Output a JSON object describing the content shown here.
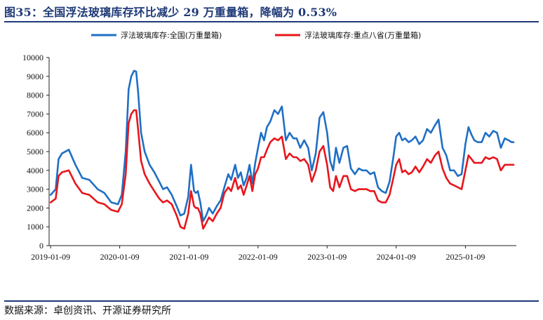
{
  "header": {
    "title": "图35：全国浮法玻璃库存环比减少 29 万重量箱，降幅为 0.53%"
  },
  "footer": {
    "source": "数据来源：卓创资讯、开源证券研究所"
  },
  "chart_data": {
    "type": "line",
    "title": "图35：全国浮法玻璃库存环比减少 29 万重量箱，降幅为 0.53%",
    "xlabel": "",
    "ylabel": "",
    "ylim": [
      0,
      10000
    ],
    "y_ticks": [
      0,
      1000,
      2000,
      3000,
      4000,
      5000,
      6000,
      7000,
      8000,
      9000,
      10000
    ],
    "x_ticks": [
      "2019-01-09",
      "2020-01-09",
      "2021-01-09",
      "2022-01-09",
      "2023-01-09",
      "2024-01-09",
      "2025-01-09"
    ],
    "legend_position": "top",
    "grid": false,
    "series": [
      {
        "name": "浮法玻璃库存:全国(万重量箱)",
        "color": "#1f6fc5",
        "x": [
          "2019-01-09",
          "2019-02-05",
          "2019-02-20",
          "2019-03-10",
          "2019-04-15",
          "2019-05-20",
          "2019-06-25",
          "2019-08-01",
          "2019-09-15",
          "2019-10-20",
          "2019-11-25",
          "2019-12-31",
          "2020-01-20",
          "2020-02-10",
          "2020-02-25",
          "2020-03-10",
          "2020-03-25",
          "2020-04-05",
          "2020-04-15",
          "2020-05-01",
          "2020-05-20",
          "2020-06-15",
          "2020-07-10",
          "2020-08-05",
          "2020-08-25",
          "2020-09-15",
          "2020-10-10",
          "2020-11-05",
          "2020-11-25",
          "2020-12-15",
          "2021-01-05",
          "2021-01-20",
          "2021-02-05",
          "2021-02-15",
          "2021-02-25",
          "2021-03-10",
          "2021-03-25",
          "2021-04-10",
          "2021-04-25",
          "2021-05-15",
          "2021-06-05",
          "2021-06-25",
          "2021-07-15",
          "2021-08-05",
          "2021-08-20",
          "2021-09-10",
          "2021-09-25",
          "2021-10-10",
          "2021-10-25",
          "2021-11-10",
          "2021-11-25",
          "2021-12-10",
          "2021-12-25",
          "2022-01-09",
          "2022-01-25",
          "2022-02-10",
          "2022-02-25",
          "2022-03-15",
          "2022-04-05",
          "2022-04-25",
          "2022-05-15",
          "2022-06-05",
          "2022-06-25",
          "2022-07-15",
          "2022-08-01",
          "2022-08-20",
          "2022-09-10",
          "2022-10-01",
          "2022-10-20",
          "2022-11-10",
          "2022-11-30",
          "2022-12-20",
          "2023-01-09",
          "2023-01-25",
          "2023-02-10",
          "2023-02-25",
          "2023-03-15",
          "2023-04-05",
          "2023-04-25",
          "2023-05-15",
          "2023-06-05",
          "2023-06-25",
          "2023-07-15",
          "2023-08-05",
          "2023-08-25",
          "2023-09-15",
          "2023-10-05",
          "2023-10-25",
          "2023-11-15",
          "2023-12-05",
          "2023-12-25",
          "2024-01-09",
          "2024-01-25",
          "2024-02-10",
          "2024-02-25",
          "2024-03-15",
          "2024-04-01",
          "2024-04-20",
          "2024-05-10",
          "2024-05-30",
          "2024-06-20",
          "2024-07-10",
          "2024-08-01",
          "2024-08-20",
          "2024-09-10",
          "2024-09-30",
          "2024-10-20",
          "2024-11-10",
          "2024-11-30",
          "2024-12-20",
          "2025-01-09",
          "2025-01-25",
          "2025-02-10",
          "2025-02-25",
          "2025-03-15",
          "2025-04-05",
          "2025-04-25",
          "2025-05-15",
          "2025-06-05",
          "2025-06-25",
          "2025-07-15",
          "2025-08-05",
          "2025-08-25",
          "2025-09-10",
          "2025-09-20"
        ],
        "values": [
          2700,
          3000,
          4600,
          4900,
          5100,
          4300,
          3600,
          3500,
          3000,
          2800,
          2300,
          2200,
          2700,
          5000,
          8300,
          9000,
          9300,
          9250,
          8200,
          6000,
          5000,
          4300,
          3900,
          3400,
          3000,
          3100,
          2700,
          2100,
          1600,
          1700,
          2600,
          4300,
          2900,
          2800,
          2900,
          2300,
          1300,
          1600,
          2000,
          1700,
          2100,
          2400,
          3100,
          3800,
          3500,
          4300,
          3600,
          3900,
          3200,
          3600,
          4300,
          3300,
          4400,
          5200,
          6000,
          5600,
          6300,
          6600,
          7200,
          7000,
          7400,
          5600,
          6000,
          5700,
          5700,
          5200,
          5600,
          5200,
          4000,
          4900,
          6800,
          7100,
          6000,
          4500,
          4000,
          5200,
          4400,
          5200,
          5300,
          4100,
          3800,
          4100,
          4000,
          4000,
          3800,
          3900,
          3100,
          2900,
          2800,
          3400,
          4700,
          5800,
          6000,
          5600,
          5700,
          5500,
          5600,
          5800,
          5400,
          5600,
          6200,
          6000,
          6400,
          6700,
          5200,
          4800,
          4000,
          4000,
          3700,
          3800,
          5400,
          6300,
          5900,
          5600,
          5500,
          5500,
          6000,
          5800,
          6100,
          6000,
          5200,
          5700,
          5600,
          5500,
          5500
        ]
      },
      {
        "name": "浮法玻璃库存:重点八省(万重量箱)",
        "color": "#e8151b",
        "x": [
          "2019-01-09",
          "2019-02-05",
          "2019-02-20",
          "2019-03-10",
          "2019-04-15",
          "2019-05-20",
          "2019-06-25",
          "2019-08-01",
          "2019-09-15",
          "2019-10-20",
          "2019-11-25",
          "2019-12-31",
          "2020-01-20",
          "2020-02-10",
          "2020-02-25",
          "2020-03-10",
          "2020-03-25",
          "2020-04-05",
          "2020-04-15",
          "2020-05-01",
          "2020-05-20",
          "2020-06-15",
          "2020-07-10",
          "2020-08-05",
          "2020-08-25",
          "2020-09-15",
          "2020-10-10",
          "2020-11-05",
          "2020-11-25",
          "2020-12-15",
          "2021-01-05",
          "2021-01-20",
          "2021-02-05",
          "2021-02-15",
          "2021-02-25",
          "2021-03-10",
          "2021-03-25",
          "2021-04-10",
          "2021-04-25",
          "2021-05-15",
          "2021-06-05",
          "2021-06-25",
          "2021-07-15",
          "2021-08-05",
          "2021-08-20",
          "2021-09-10",
          "2021-09-25",
          "2021-10-10",
          "2021-10-25",
          "2021-11-10",
          "2021-11-25",
          "2021-12-10",
          "2021-12-25",
          "2022-01-09",
          "2022-01-25",
          "2022-02-10",
          "2022-02-25",
          "2022-03-15",
          "2022-04-05",
          "2022-04-25",
          "2022-05-15",
          "2022-06-05",
          "2022-06-25",
          "2022-07-15",
          "2022-08-01",
          "2022-08-20",
          "2022-09-10",
          "2022-10-01",
          "2022-10-20",
          "2022-11-10",
          "2022-11-30",
          "2022-12-20",
          "2023-01-09",
          "2023-01-25",
          "2023-02-10",
          "2023-02-25",
          "2023-03-15",
          "2023-04-05",
          "2023-04-25",
          "2023-05-15",
          "2023-06-05",
          "2023-06-25",
          "2023-07-15",
          "2023-08-05",
          "2023-08-25",
          "2023-09-15",
          "2023-10-05",
          "2023-10-25",
          "2023-11-15",
          "2023-12-05",
          "2023-12-25",
          "2024-01-09",
          "2024-01-25",
          "2024-02-10",
          "2024-02-25",
          "2024-03-15",
          "2024-04-01",
          "2024-04-20",
          "2024-05-10",
          "2024-05-30",
          "2024-06-20",
          "2024-07-10",
          "2024-08-01",
          "2024-08-20",
          "2024-09-10",
          "2024-09-30",
          "2024-10-20",
          "2024-11-10",
          "2024-11-30",
          "2024-12-20",
          "2025-01-09",
          "2025-01-25",
          "2025-02-10",
          "2025-02-25",
          "2025-03-15",
          "2025-04-05",
          "2025-04-25",
          "2025-05-15",
          "2025-06-05",
          "2025-06-25",
          "2025-07-15",
          "2025-08-05",
          "2025-08-25",
          "2025-09-10",
          "2025-09-20"
        ],
        "values": [
          2300,
          2500,
          3700,
          3900,
          4000,
          3300,
          2800,
          2700,
          2300,
          2200,
          1900,
          1800,
          2200,
          3800,
          6500,
          7000,
          7200,
          7200,
          6200,
          4500,
          3800,
          3300,
          2900,
          2500,
          2300,
          2400,
          2200,
          1600,
          1000,
          900,
          1700,
          2900,
          2100,
          2000,
          2000,
          1700,
          900,
          1200,
          1500,
          1300,
          1700,
          2000,
          2800,
          3100,
          2900,
          3600,
          3000,
          3200,
          2700,
          3200,
          3700,
          2900,
          3800,
          4100,
          4700,
          4700,
          5100,
          5500,
          5700,
          5600,
          5800,
          4600,
          4900,
          4700,
          4700,
          4500,
          4600,
          4300,
          3400,
          4000,
          5000,
          5300,
          4300,
          3100,
          2900,
          3700,
          3100,
          3700,
          3700,
          3000,
          2900,
          3000,
          3000,
          3000,
          2900,
          2900,
          2400,
          2300,
          2300,
          2700,
          3600,
          4300,
          4600,
          3900,
          4000,
          3800,
          3900,
          4200,
          3900,
          4200,
          4600,
          4400,
          4800,
          5000,
          4100,
          3600,
          3300,
          3200,
          3100,
          3000,
          4000,
          4800,
          4600,
          4400,
          4400,
          4400,
          4700,
          4600,
          4700,
          4600,
          4000,
          4300,
          4300,
          4300,
          4300
        ]
      }
    ]
  }
}
